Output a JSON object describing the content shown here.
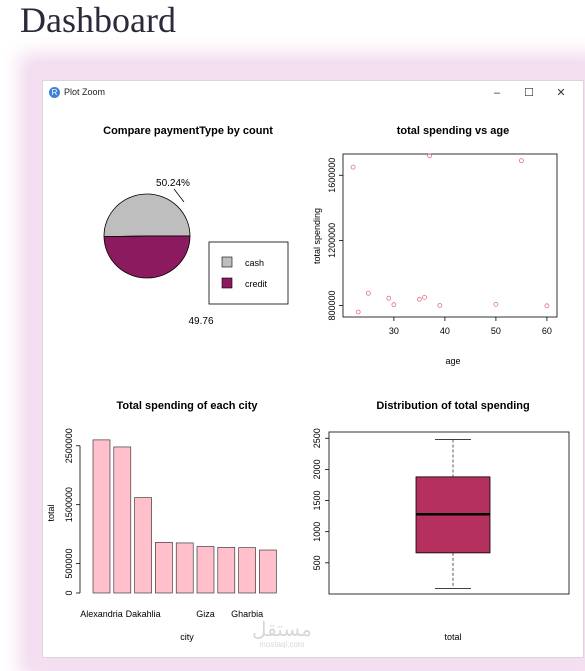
{
  "page": {
    "title": "Dashboard"
  },
  "window": {
    "title": "Plot Zoom",
    "icon_glyph": "R",
    "minimize_glyph": "–",
    "maximize_glyph": "☐",
    "close_glyph": "✕"
  },
  "watermark": {
    "arabic": "مستقل",
    "url": "mostaql.com"
  },
  "colors": {
    "cash": "#bebebe",
    "credit": "#8b1a5e",
    "bar_fill": "#ffc0cb",
    "box_fill": "#b5305f",
    "scatter_point": "#e07080"
  },
  "chart_data": [
    {
      "type": "pie",
      "title": "Compare paymentType by count",
      "slices": [
        {
          "label": "cash",
          "value": 50.24,
          "text": "50.24%",
          "color": "#bebebe"
        },
        {
          "label": "credit",
          "value": 49.76,
          "text": "49.76",
          "color": "#8b1a5e"
        }
      ],
      "legend": [
        "cash",
        "credit"
      ]
    },
    {
      "type": "scatter",
      "title": "total spending vs age",
      "xlabel": "age",
      "ylabel": "total spending",
      "xlim": [
        21,
        61
      ],
      "ylim": [
        760000,
        1700000
      ],
      "xticks": [
        30,
        40,
        50,
        60
      ],
      "yticks": [
        800000,
        1200000,
        1600000
      ],
      "points": [
        {
          "x": 22,
          "y": 1650000
        },
        {
          "x": 23,
          "y": 760000
        },
        {
          "x": 25,
          "y": 875000
        },
        {
          "x": 29,
          "y": 845000
        },
        {
          "x": 30,
          "y": 805000
        },
        {
          "x": 35,
          "y": 838000
        },
        {
          "x": 36,
          "y": 850000
        },
        {
          "x": 37,
          "y": 1720000
        },
        {
          "x": 39,
          "y": 800000
        },
        {
          "x": 50,
          "y": 807000
        },
        {
          "x": 55,
          "y": 1690000
        },
        {
          "x": 60,
          "y": 798000
        }
      ]
    },
    {
      "type": "bar",
      "title": "Total spending of each city",
      "xlabel": "city",
      "ylabel": "total",
      "ylim": [
        0,
        2700000
      ],
      "yticks": [
        0,
        500000,
        1500000,
        2500000
      ],
      "categories": [
        "Alexandria",
        "",
        "Dakahlia",
        "",
        "",
        "Giza",
        "",
        "Gharbia",
        ""
      ],
      "values": [
        2600000,
        2480000,
        1620000,
        860000,
        850000,
        790000,
        775000,
        770000,
        730000
      ]
    },
    {
      "type": "box",
      "title": "Distribution of total spending",
      "xlabel": "total",
      "ylim": [
        0,
        2600
      ],
      "yticks": [
        500,
        1000,
        1500,
        2000,
        2500
      ],
      "min": 90,
      "q1": 660,
      "median": 1280,
      "q3": 1880,
      "max": 2480
    }
  ]
}
